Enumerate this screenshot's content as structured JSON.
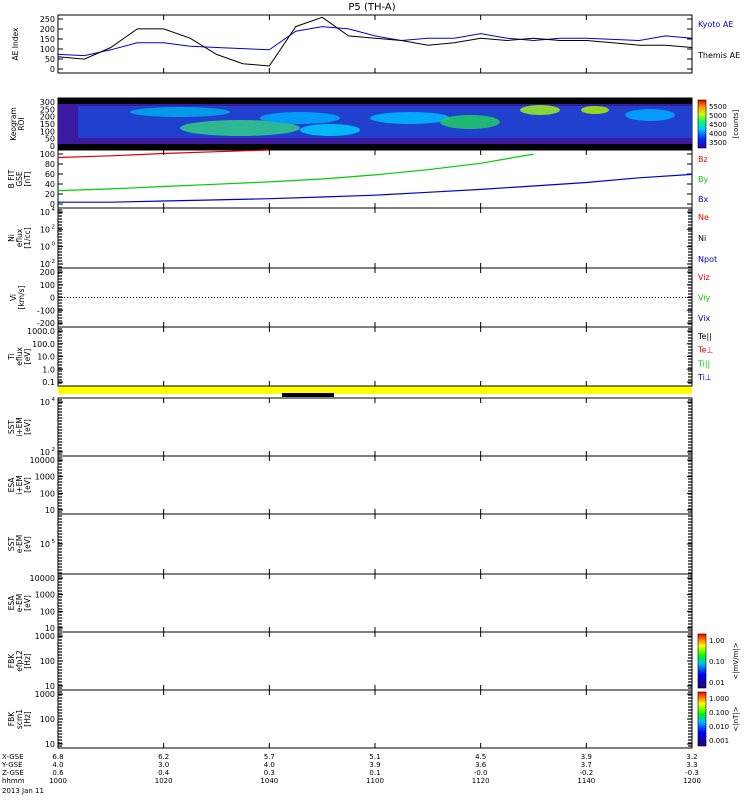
{
  "title": "P5 (TH-A)",
  "colors": {
    "red": "#dd0000",
    "green": "#00cc00",
    "blue": "#0000cc",
    "black": "#000000",
    "yellow": "#ffff00"
  },
  "xaxis": {
    "ticks": [
      "1000",
      "1020",
      "1040",
      "1100",
      "1120",
      "1140",
      "1200"
    ],
    "rows": [
      {
        "label": "X-GSE",
        "values": [
          "6.8",
          "6.2",
          "5.7",
          "5.1",
          "4.5",
          "3.9",
          "3.2"
        ]
      },
      {
        "label": "Y-GSE",
        "values": [
          "4.0",
          "3.0",
          "4.0",
          "3.9",
          "3.6",
          "3.7",
          "3.3"
        ]
      },
      {
        "label": "Z-GSE",
        "values": [
          "0.6",
          "0.4",
          "0.3",
          "0.1",
          "-0.0",
          "-0.2",
          "-0.3"
        ]
      },
      {
        "label": "hhmm",
        "values": [
          "1000",
          "1020",
          "1040",
          "1100",
          "1120",
          "1140",
          "1200"
        ]
      }
    ],
    "date": "2013 Jan 11"
  },
  "panels": [
    {
      "id": "ae",
      "ylabel": [
        "AE Index"
      ],
      "yticks": [
        "250",
        "200",
        "150",
        "100",
        "50",
        "0"
      ],
      "legend": [
        {
          "text": "Kyoto AE",
          "color": "#0000cc"
        },
        {
          "text": "Themis AE",
          "color": "#000000"
        }
      ]
    },
    {
      "id": "keogram",
      "ylabel": [
        "Keogram",
        "ROI"
      ],
      "yticks": [
        "300",
        "250",
        "200",
        "150",
        "100",
        "50",
        "0"
      ],
      "colorbar": {
        "ticks": [
          "5500",
          "5000",
          "4500",
          "4000",
          "3500"
        ],
        "unit": "[counts]"
      }
    },
    {
      "id": "bfield",
      "ylabel": [
        "B FIT",
        "GSE",
        "[nT]"
      ],
      "yticks": [
        "100",
        "80",
        "60",
        "40",
        "20",
        "0"
      ],
      "legend": [
        {
          "text": "Bz",
          "color": "#dd0000"
        },
        {
          "text": "By",
          "color": "#00cc00"
        },
        {
          "text": "Bx",
          "color": "#0000cc"
        }
      ]
    },
    {
      "id": "density",
      "ylabel": [
        "Ni",
        "eflux",
        "[1/cc]"
      ],
      "yticks": [
        "10",
        "10",
        "10",
        "10"
      ],
      "sup": [
        "4",
        "2",
        "0",
        "-2"
      ],
      "legend": [
        {
          "text": "Ne",
          "color": "#dd0000"
        },
        {
          "text": "Ni",
          "color": "#000000"
        },
        {
          "text": "Npot",
          "color": "#0000cc"
        }
      ]
    },
    {
      "id": "velocity",
      "ylabel": [
        "Vi",
        "[km/s]"
      ],
      "yticks": [
        "200",
        "100",
        "0",
        "-100",
        "-200"
      ],
      "legend": [
        {
          "text": "Viz",
          "color": "#dd0000"
        },
        {
          "text": "Viy",
          "color": "#00cc00"
        },
        {
          "text": "Vix",
          "color": "#0000cc"
        }
      ]
    },
    {
      "id": "temp",
      "ylabel": [
        "Ti",
        "eflux",
        "[eV]"
      ],
      "yticks": [
        "1000.0",
        "100.0",
        "10.0",
        "1.0",
        "0.1"
      ],
      "legend": [
        {
          "text": "Te||",
          "color": "#000000"
        },
        {
          "text": "Te⊥",
          "color": "#dd0000"
        },
        {
          "text": "Ti||",
          "color": "#00cc00"
        },
        {
          "text": "Ti⊥",
          "color": "#0000cc"
        }
      ]
    },
    {
      "id": "sst1",
      "ylabel": [
        "SST",
        "i+EM",
        "[eV]"
      ],
      "yticks": [
        "10",
        "10"
      ],
      "sup": [
        "4",
        "2"
      ]
    },
    {
      "id": "esa1",
      "ylabel": [
        "ESA",
        "i+EM",
        "[eV]"
      ],
      "yticks": [
        "10000",
        "1000",
        "100",
        "10"
      ]
    },
    {
      "id": "sst2",
      "ylabel": [
        "SST",
        "e-EM",
        "[eV]"
      ],
      "yticks": [
        "10"
      ],
      "sup": [
        "5"
      ]
    },
    {
      "id": "esa2",
      "ylabel": [
        "ESA",
        "e-EM",
        "[eV]"
      ],
      "yticks": [
        "10000",
        "1000",
        "100",
        "10"
      ]
    },
    {
      "id": "fbk1",
      "ylabel": [
        "FBK",
        "efp12",
        "[Hz]"
      ],
      "yticks": [
        "1000",
        "100",
        "10"
      ],
      "colorbar": {
        "ticks": [
          "1.00",
          "0.10",
          "0.01"
        ],
        "unit": "<|mV/m|>"
      }
    },
    {
      "id": "fbk2",
      "ylabel": [
        "FBK",
        "scm1",
        "[Hz]"
      ],
      "yticks": [
        "1000",
        "100",
        "10"
      ],
      "colorbar": {
        "ticks": [
          "1.000",
          "0.100",
          "0.010",
          "0.001"
        ],
        "unit": "<|nT|>"
      }
    }
  ],
  "chart_data": [
    {
      "type": "line",
      "title": "P5 (TH-A)",
      "ylabel": "AE Index",
      "ylim": [
        0,
        250
      ],
      "x": [
        "1000",
        "1005",
        "1010",
        "1015",
        "1020",
        "1025",
        "1030",
        "1035",
        "1040",
        "1045",
        "1050",
        "1055",
        "1100",
        "1105",
        "1110",
        "1115",
        "1120",
        "1125",
        "1130",
        "1135",
        "1140",
        "1145",
        "1150",
        "1155",
        "1200"
      ],
      "series": [
        {
          "name": "Kyoto AE",
          "values": [
            80,
            75,
            100,
            130,
            130,
            115,
            110,
            105,
            100,
            180,
            200,
            190,
            160,
            140,
            150,
            150,
            170,
            150,
            140,
            150,
            150,
            145,
            140,
            160,
            150
          ]
        },
        {
          "name": "Themis AE",
          "values": [
            70,
            60,
            110,
            190,
            190,
            150,
            80,
            40,
            30,
            200,
            240,
            160,
            150,
            140,
            120,
            130,
            150,
            140,
            150,
            140,
            140,
            130,
            120,
            120,
            110
          ]
        }
      ]
    },
    {
      "type": "line",
      "ylabel": "B FIT GSE [nT]",
      "ylim": [
        0,
        100
      ],
      "x": [
        "1000",
        "1010",
        "1020",
        "1030",
        "1040",
        "1050",
        "1100",
        "1110",
        "1120",
        "1130",
        "1140",
        "1150",
        "1200"
      ],
      "series": [
        {
          "name": "Bz",
          "values": [
            87,
            90,
            94,
            97,
            100,
            null,
            null,
            null,
            null,
            null,
            null,
            null,
            null
          ]
        },
        {
          "name": "By",
          "values": [
            30,
            33,
            37,
            41,
            45,
            50,
            57,
            66,
            77,
            93,
            null,
            null,
            null
          ]
        },
        {
          "name": "Bx",
          "values": [
            10,
            10,
            12,
            14,
            16,
            19,
            22,
            27,
            32,
            38,
            44,
            52,
            58
          ]
        }
      ]
    },
    {
      "type": "line",
      "ylabel": "Vi [km/s]",
      "ylim": [
        -200,
        200
      ],
      "x": [
        "1000",
        "1200"
      ],
      "series": [
        {
          "values": [
            0,
            0
          ]
        }
      ]
    },
    {
      "type": "heatmap",
      "ylabel": "Keogram ROI",
      "ylim": [
        0,
        300
      ],
      "zlabel": "[counts]",
      "zlim": [
        3500,
        5500
      ]
    }
  ]
}
